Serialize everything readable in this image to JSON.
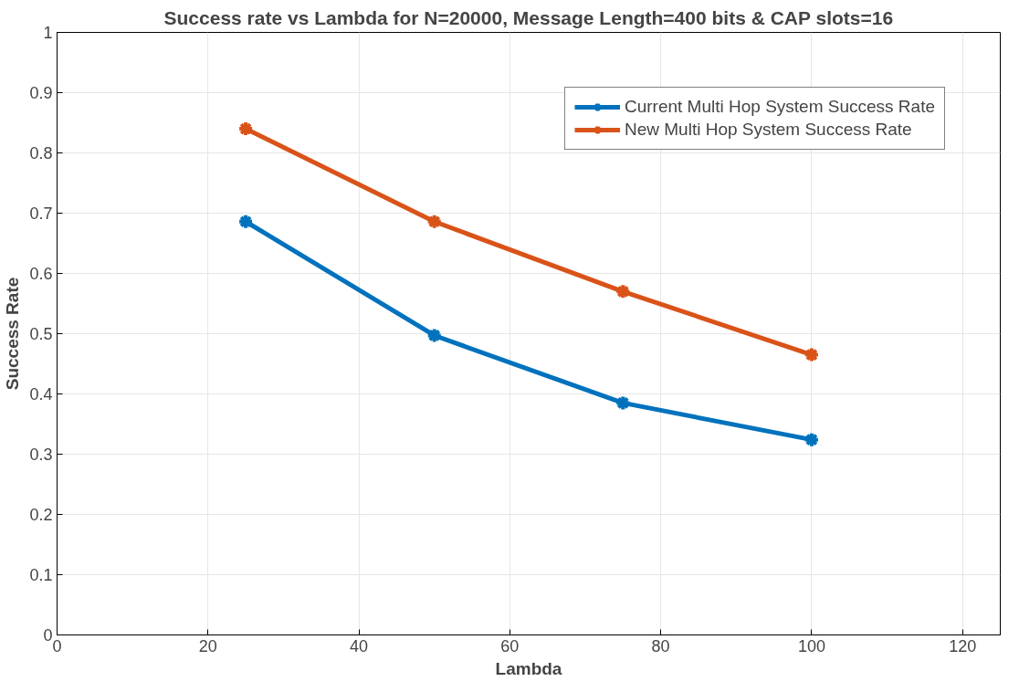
{
  "chart_data": {
    "type": "line",
    "title": "Success rate vs Lambda for N=20000, Message Length=400 bits & CAP slots=16",
    "xlabel": "Lambda",
    "ylabel": "Success Rate",
    "x": [
      25,
      50,
      75,
      100
    ],
    "series": [
      {
        "name": "Current Multi Hop System Success Rate",
        "color": "#0072bd",
        "values": [
          0.686,
          0.497,
          0.385,
          0.324
        ]
      },
      {
        "name": "New Multi Hop System Success Rate",
        "color": "#d95319",
        "values": [
          0.84,
          0.686,
          0.57,
          0.465
        ]
      }
    ],
    "xlim": [
      0,
      125
    ],
    "xticks": [
      0,
      20,
      40,
      60,
      80,
      100,
      120
    ],
    "ylim": [
      0,
      1
    ],
    "yticks": [
      0,
      0.1,
      0.2,
      0.3,
      0.4,
      0.5,
      0.6,
      0.7,
      0.8,
      0.9,
      1
    ],
    "grid": true,
    "legend": "top right",
    "marker": "cross",
    "line_style": "solid"
  }
}
